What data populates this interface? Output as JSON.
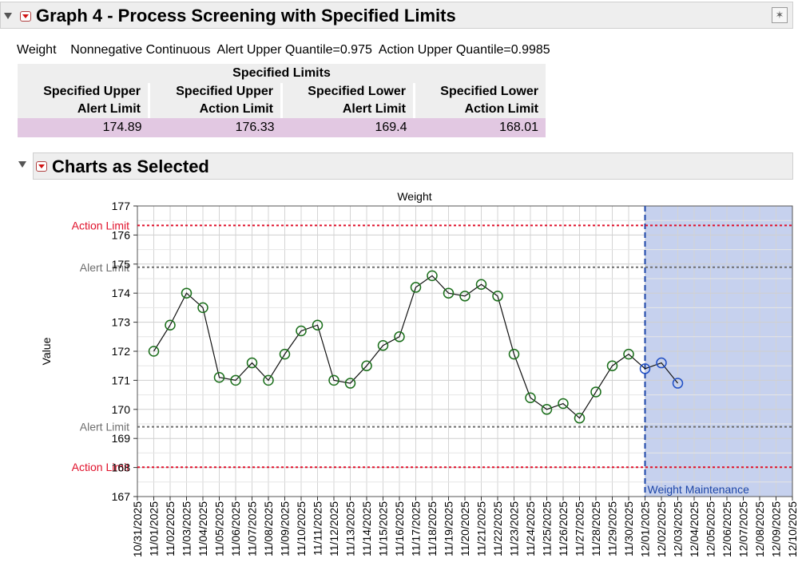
{
  "report": {
    "title": "Graph 4 - Process Screening with Specified Limits",
    "info": "Weight    Nonnegative Continuous  Alert Upper Quantile=0.975  Action Upper Quantile=0.9985",
    "limits_table": {
      "title": "Specified Limits",
      "headers": [
        [
          "Specified Upper",
          "Alert Limit"
        ],
        [
          "Specified Upper",
          "Action Limit"
        ],
        [
          "Specified Lower",
          "Alert Limit"
        ],
        [
          "Specified Lower",
          "Action Limit"
        ]
      ],
      "values": [
        "174.89",
        "176.33",
        "169.4",
        "168.01"
      ]
    },
    "charts_title": "Charts as Selected"
  },
  "colors": {
    "action_limit": "#e0112b",
    "alert_limit": "#6e6e6e",
    "phase_fill": "#c6d1ee",
    "phase_line": "#1d46a8",
    "point_green": "#1a6e1a",
    "point_blue": "#1f4ec4"
  },
  "chart_data": {
    "type": "line",
    "title": "Weight",
    "ylabel": "Value",
    "xlabel": "",
    "ylim": [
      167,
      177
    ],
    "yticks": [
      167,
      168,
      169,
      170,
      171,
      172,
      173,
      174,
      175,
      176,
      177
    ],
    "grid": true,
    "categories": [
      "10/31/2025",
      "11/01/2025",
      "11/02/2025",
      "11/03/2025",
      "11/04/2025",
      "11/05/2025",
      "11/06/2025",
      "11/07/2025",
      "11/08/2025",
      "11/09/2025",
      "11/10/2025",
      "11/11/2025",
      "11/12/2025",
      "11/13/2025",
      "11/14/2025",
      "11/15/2025",
      "11/16/2025",
      "11/17/2025",
      "11/18/2025",
      "11/19/2025",
      "11/20/2025",
      "11/21/2025",
      "11/22/2025",
      "11/23/2025",
      "11/24/2025",
      "11/25/2025",
      "11/26/2025",
      "11/27/2025",
      "11/28/2025",
      "11/29/2025",
      "11/30/2025",
      "12/01/2025",
      "12/02/2025",
      "12/03/2025",
      "12/04/2025",
      "12/05/2025",
      "12/06/2025",
      "12/07/2025",
      "12/08/2025",
      "12/09/2025",
      "12/10/2025"
    ],
    "series": [
      {
        "x": [
          "11/01/2025",
          "11/02/2025",
          "11/03/2025",
          "11/04/2025",
          "11/05/2025",
          "11/06/2025",
          "11/07/2025",
          "11/08/2025",
          "11/09/2025",
          "11/10/2025",
          "11/11/2025",
          "11/12/2025",
          "11/13/2025",
          "11/14/2025",
          "11/15/2025",
          "11/16/2025",
          "11/17/2025",
          "11/18/2025",
          "11/19/2025",
          "11/20/2025",
          "11/21/2025",
          "11/22/2025",
          "11/23/2025",
          "11/24/2025",
          "11/25/2025",
          "11/26/2025",
          "11/27/2025",
          "11/28/2025",
          "11/29/2025",
          "11/30/2025",
          "12/01/2025",
          "12/02/2025",
          "12/03/2025"
        ],
        "values": [
          172.0,
          172.9,
          174.0,
          173.5,
          171.1,
          171.0,
          171.6,
          171.0,
          171.9,
          172.7,
          172.9,
          171.0,
          170.9,
          171.5,
          172.2,
          172.5,
          174.2,
          174.6,
          174.0,
          173.9,
          174.3,
          173.9,
          171.9,
          170.4,
          170.0,
          170.2,
          169.7,
          170.6,
          171.5,
          171.9,
          171.4,
          171.6,
          170.9
        ],
        "phase_start_index": 30
      }
    ],
    "reference_lines": [
      {
        "label": "Action Limit",
        "value": 176.33,
        "kind": "action"
      },
      {
        "label": "Alert Limit",
        "value": 174.89,
        "kind": "alert"
      },
      {
        "label": "Alert Limit",
        "value": 169.4,
        "kind": "alert"
      },
      {
        "label": "Action Limit",
        "value": 168.01,
        "kind": "action"
      }
    ],
    "phase": {
      "start": "12/01/2025",
      "label": "Weight Maintenance"
    }
  }
}
